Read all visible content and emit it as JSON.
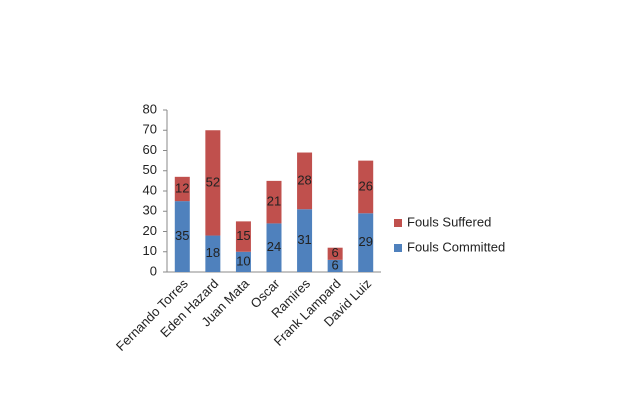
{
  "chart_data": {
    "type": "stacked-bar",
    "categories": [
      "Fernando Torres",
      "Eden Hazard",
      "Juan Mata",
      "Oscar",
      "Ramires",
      "Frank Lampard",
      "David Luiz"
    ],
    "series": [
      {
        "name": "Fouls Committed",
        "color": "#4f81bd",
        "values": [
          35,
          18,
          10,
          24,
          31,
          6,
          29
        ]
      },
      {
        "name": "Fouls Suffered",
        "color": "#c0504d",
        "values": [
          12,
          52,
          15,
          21,
          28,
          6,
          26
        ]
      }
    ],
    "ylim": [
      0,
      80
    ],
    "yticks": [
      0,
      10,
      20,
      30,
      40,
      50,
      60,
      70,
      80
    ],
    "grid": false,
    "legend": "right"
  }
}
